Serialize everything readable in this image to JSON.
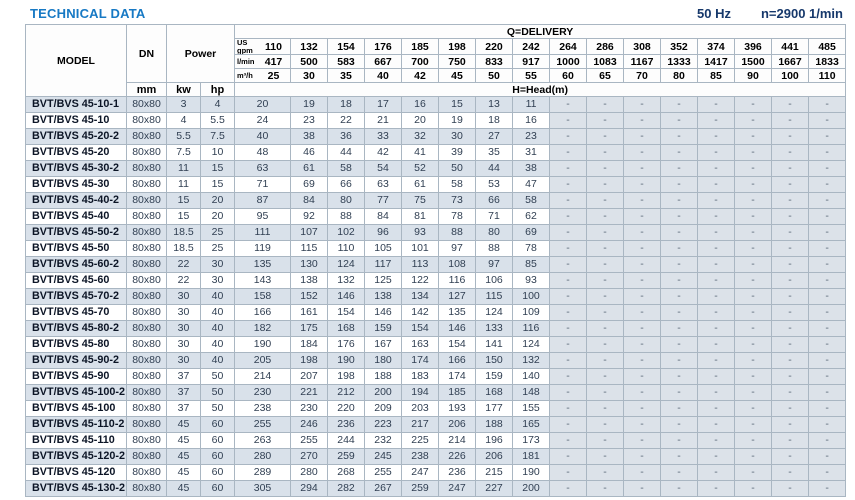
{
  "page": {
    "title": "TECHNICAL DATA",
    "frequency": "50 Hz",
    "speed": "n=2900 1/min"
  },
  "table": {
    "headers": {
      "model": "MODEL",
      "dn": "DN",
      "dn_unit": "mm",
      "power": "Power",
      "kw": "kw",
      "hp": "hp",
      "delivery": "Q=DELIVERY",
      "us_gpm_label": "US gpm",
      "l_min_label": "l/min",
      "m3_h_label": "m³/h",
      "head": "H=Head(m)"
    },
    "delivery": {
      "us_gpm": [
        "110",
        "132",
        "154",
        "176",
        "185",
        "198",
        "220",
        "242",
        "264",
        "286",
        "308",
        "352",
        "374",
        "396",
        "441",
        "485"
      ],
      "l_min": [
        "417",
        "500",
        "583",
        "667",
        "700",
        "750",
        "833",
        "917",
        "1000",
        "1083",
        "1167",
        "1333",
        "1417",
        "1500",
        "1667",
        "1833"
      ],
      "m3_h": [
        "25",
        "30",
        "35",
        "40",
        "42",
        "45",
        "50",
        "55",
        "60",
        "65",
        "70",
        "80",
        "85",
        "90",
        "100",
        "110"
      ]
    },
    "rows": [
      {
        "model": "BVT/BVS 45-10-1",
        "dn": "80x80",
        "kw": "3",
        "hp": "4",
        "head": [
          "20",
          "19",
          "18",
          "17",
          "16",
          "15",
          "13",
          "11"
        ]
      },
      {
        "model": "BVT/BVS 45-10",
        "dn": "80x80",
        "kw": "4",
        "hp": "5.5",
        "head": [
          "24",
          "23",
          "22",
          "21",
          "20",
          "19",
          "18",
          "16"
        ]
      },
      {
        "model": "BVT/BVS 45-20-2",
        "dn": "80x80",
        "kw": "5.5",
        "hp": "7.5",
        "head": [
          "40",
          "38",
          "36",
          "33",
          "32",
          "30",
          "27",
          "23"
        ]
      },
      {
        "model": "BVT/BVS 45-20",
        "dn": "80x80",
        "kw": "7.5",
        "hp": "10",
        "head": [
          "48",
          "46",
          "44",
          "42",
          "41",
          "39",
          "35",
          "31"
        ]
      },
      {
        "model": "BVT/BVS 45-30-2",
        "dn": "80x80",
        "kw": "11",
        "hp": "15",
        "head": [
          "63",
          "61",
          "58",
          "54",
          "52",
          "50",
          "44",
          "38"
        ]
      },
      {
        "model": "BVT/BVS 45-30",
        "dn": "80x80",
        "kw": "11",
        "hp": "15",
        "head": [
          "71",
          "69",
          "66",
          "63",
          "61",
          "58",
          "53",
          "47"
        ]
      },
      {
        "model": "BVT/BVS 45-40-2",
        "dn": "80x80",
        "kw": "15",
        "hp": "20",
        "head": [
          "87",
          "84",
          "80",
          "77",
          "75",
          "73",
          "66",
          "58"
        ]
      },
      {
        "model": "BVT/BVS 45-40",
        "dn": "80x80",
        "kw": "15",
        "hp": "20",
        "head": [
          "95",
          "92",
          "88",
          "84",
          "81",
          "78",
          "71",
          "62"
        ]
      },
      {
        "model": "BVT/BVS 45-50-2",
        "dn": "80x80",
        "kw": "18.5",
        "hp": "25",
        "head": [
          "111",
          "107",
          "102",
          "96",
          "93",
          "88",
          "80",
          "69"
        ]
      },
      {
        "model": "BVT/BVS 45-50",
        "dn": "80x80",
        "kw": "18.5",
        "hp": "25",
        "head": [
          "119",
          "115",
          "110",
          "105",
          "101",
          "97",
          "88",
          "78"
        ]
      },
      {
        "model": "BVT/BVS 45-60-2",
        "dn": "80x80",
        "kw": "22",
        "hp": "30",
        "head": [
          "135",
          "130",
          "124",
          "117",
          "113",
          "108",
          "97",
          "85"
        ]
      },
      {
        "model": "BVT/BVS 45-60",
        "dn": "80x80",
        "kw": "22",
        "hp": "30",
        "head": [
          "143",
          "138",
          "132",
          "125",
          "122",
          "116",
          "106",
          "93"
        ]
      },
      {
        "model": "BVT/BVS 45-70-2",
        "dn": "80x80",
        "kw": "30",
        "hp": "40",
        "head": [
          "158",
          "152",
          "146",
          "138",
          "134",
          "127",
          "115",
          "100"
        ]
      },
      {
        "model": "BVT/BVS 45-70",
        "dn": "80x80",
        "kw": "30",
        "hp": "40",
        "head": [
          "166",
          "161",
          "154",
          "146",
          "142",
          "135",
          "124",
          "109"
        ]
      },
      {
        "model": "BVT/BVS 45-80-2",
        "dn": "80x80",
        "kw": "30",
        "hp": "40",
        "head": [
          "182",
          "175",
          "168",
          "159",
          "154",
          "146",
          "133",
          "116"
        ]
      },
      {
        "model": "BVT/BVS 45-80",
        "dn": "80x80",
        "kw": "30",
        "hp": "40",
        "head": [
          "190",
          "184",
          "176",
          "167",
          "163",
          "154",
          "141",
          "124"
        ]
      },
      {
        "model": "BVT/BVS 45-90-2",
        "dn": "80x80",
        "kw": "30",
        "hp": "40",
        "head": [
          "205",
          "198",
          "190",
          "180",
          "174",
          "166",
          "150",
          "132"
        ]
      },
      {
        "model": "BVT/BVS 45-90",
        "dn": "80x80",
        "kw": "37",
        "hp": "50",
        "head": [
          "214",
          "207",
          "198",
          "188",
          "183",
          "174",
          "159",
          "140"
        ]
      },
      {
        "model": "BVT/BVS 45-100-2",
        "dn": "80x80",
        "kw": "37",
        "hp": "50",
        "head": [
          "230",
          "221",
          "212",
          "200",
          "194",
          "185",
          "168",
          "148"
        ]
      },
      {
        "model": "BVT/BVS 45-100",
        "dn": "80x80",
        "kw": "37",
        "hp": "50",
        "head": [
          "238",
          "230",
          "220",
          "209",
          "203",
          "193",
          "177",
          "155"
        ]
      },
      {
        "model": "BVT/BVS 45-110-2",
        "dn": "80x80",
        "kw": "45",
        "hp": "60",
        "head": [
          "255",
          "246",
          "236",
          "223",
          "217",
          "206",
          "188",
          "165"
        ]
      },
      {
        "model": "BVT/BVS 45-110",
        "dn": "80x80",
        "kw": "45",
        "hp": "60",
        "head": [
          "263",
          "255",
          "244",
          "232",
          "225",
          "214",
          "196",
          "173"
        ]
      },
      {
        "model": "BVT/BVS 45-120-2",
        "dn": "80x80",
        "kw": "45",
        "hp": "60",
        "head": [
          "280",
          "270",
          "259",
          "245",
          "238",
          "226",
          "206",
          "181"
        ]
      },
      {
        "model": "BVT/BVS 45-120",
        "dn": "80x80",
        "kw": "45",
        "hp": "60",
        "head": [
          "289",
          "280",
          "268",
          "255",
          "247",
          "236",
          "215",
          "190"
        ]
      },
      {
        "model": "BVT/BVS 45-130-2",
        "dn": "80x80",
        "kw": "45",
        "hp": "60",
        "head": [
          "305",
          "294",
          "282",
          "267",
          "259",
          "247",
          "227",
          "200"
        ]
      }
    ]
  },
  "colors": {
    "title_blue": "#1779c4",
    "header_navy": "#16386b",
    "stripe_blue": "#d9e1ea",
    "na_gray": "#dce2e9",
    "border": "#a9b6c2"
  }
}
